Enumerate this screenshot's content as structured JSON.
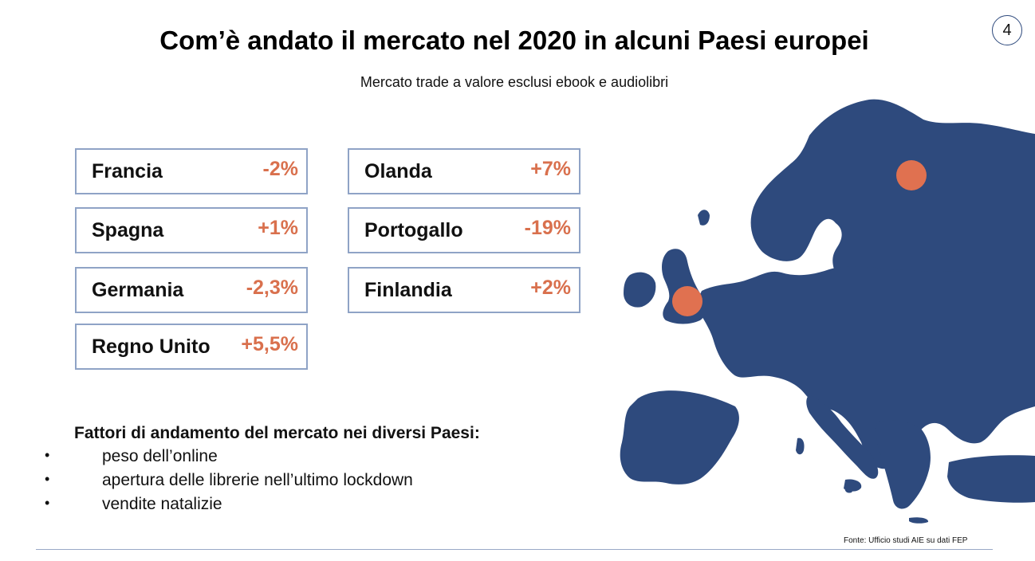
{
  "slide": {
    "title": "Com’è andato il mercato nel 2020 in alcuni Paesi europei",
    "subtitle": "Mercato trade a valore esclusi ebook e audiolibri",
    "page_number": "4"
  },
  "countries": [
    {
      "name": "Francia",
      "value": "-2%"
    },
    {
      "name": "Spagna",
      "value": "+1%"
    },
    {
      "name": "Germania",
      "value": "-2,3%"
    },
    {
      "name": "Regno Unito",
      "value": "+5,5%"
    },
    {
      "name": "Olanda",
      "value": "+7%"
    },
    {
      "name": "Portogallo",
      "value": "-19%"
    },
    {
      "name": "Finlandia",
      "value": "+2%"
    }
  ],
  "factors": {
    "title": "Fattori di andamento del mercato nei diversi Paesi:",
    "bullet": "•",
    "items": [
      "peso dell’online",
      "apertura delle librerie nell’ultimo lockdown",
      "vendite natalizie"
    ]
  },
  "source": "Fonte: Ufficio studi AIE su dati FEP",
  "colors": {
    "map": "#2e4a7d",
    "marker": "#e07150",
    "value": "#d9704d",
    "card_border": "#8fa3c6"
  },
  "map": {
    "markers": [
      "finland-marker",
      "uk-marker"
    ]
  }
}
